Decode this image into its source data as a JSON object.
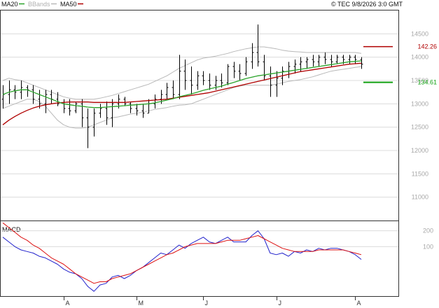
{
  "header": {
    "legend": [
      {
        "label": "MA20",
        "color": "#2aa32a"
      },
      {
        "label": "BBands",
        "color": "#b8b8b8"
      },
      {
        "label": "MA50",
        "color": "#b00000"
      }
    ],
    "timestamp": "© TEC 9/8/2026 3:0 GMT"
  },
  "colors": {
    "price": "#000000",
    "ma20": "#2aa32a",
    "bbands": "#b8b8b8",
    "ma50": "#b00000",
    "macd": "#2222cc",
    "signal": "#dd1111",
    "grid": "#dcdcdc",
    "axis": "#333333"
  },
  "chart_data": [
    {
      "type": "line",
      "y_tick_labels": [
        "14500",
        "14000",
        "13500",
        "13000",
        "12500",
        "12000",
        "11500",
        "11000"
      ],
      "y_ticks": [
        14500,
        14000,
        13500,
        13000,
        12500,
        12000,
        11500,
        11000
      ],
      "ylim": [
        10500,
        15000
      ],
      "grid": true,
      "x_tick_labels": [
        "A",
        "M",
        "J",
        "J",
        "A"
      ],
      "annotations": [
        {
          "label": "142.26",
          "value": 14226,
          "color": "#b00000"
        },
        {
          "label": "134.61",
          "value": 13461,
          "color": "#11a011"
        }
      ],
      "price_bars": [
        [
          13100,
          13400,
          12900,
          13200
        ],
        [
          13200,
          13500,
          13000,
          13300
        ],
        [
          13300,
          13400,
          13100,
          13250
        ],
        [
          13250,
          13500,
          13100,
          13350
        ],
        [
          13350,
          13400,
          13150,
          13300
        ],
        [
          13300,
          13400,
          13000,
          13100
        ],
        [
          13100,
          13300,
          12900,
          13000
        ],
        [
          13000,
          13300,
          12800,
          13200
        ],
        [
          13200,
          13300,
          13000,
          13100
        ],
        [
          13100,
          13250,
          12950,
          13000
        ],
        [
          13000,
          13100,
          12800,
          12900
        ],
        [
          12900,
          13100,
          12750,
          12850
        ],
        [
          12850,
          13050,
          12800,
          13000
        ],
        [
          13000,
          13100,
          12500,
          12700
        ],
        [
          12700,
          12900,
          12050,
          12500
        ],
        [
          12500,
          12900,
          12300,
          12800
        ],
        [
          12800,
          13000,
          12700,
          12900
        ],
        [
          12900,
          13050,
          12550,
          12700
        ],
        [
          12700,
          13100,
          12500,
          13000
        ],
        [
          13000,
          13200,
          12900,
          13100
        ],
        [
          13100,
          13150,
          12950,
          13000
        ],
        [
          13000,
          13050,
          12800,
          12900
        ],
        [
          12900,
          13000,
          12750,
          12850
        ],
        [
          12850,
          13000,
          12700,
          12800
        ],
        [
          12800,
          13100,
          12800,
          13000
        ],
        [
          13000,
          13200,
          12900,
          13100
        ],
        [
          13100,
          13300,
          13000,
          13200
        ],
        [
          13200,
          13450,
          13100,
          13350
        ],
        [
          13350,
          13500,
          13100,
          13200
        ],
        [
          13200,
          14050,
          13100,
          13700
        ],
        [
          13700,
          13950,
          13300,
          13500
        ],
        [
          13500,
          13800,
          13200,
          13400
        ],
        [
          13400,
          13700,
          13300,
          13600
        ],
        [
          13600,
          13700,
          13400,
          13500
        ],
        [
          13500,
          13650,
          13300,
          13400
        ],
        [
          13400,
          13600,
          13300,
          13500
        ],
        [
          13500,
          13650,
          13350,
          13450
        ],
        [
          13450,
          13850,
          13400,
          13800
        ],
        [
          13800,
          13900,
          13550,
          13700
        ],
        [
          13700,
          13850,
          13500,
          13650
        ],
        [
          13650,
          14000,
          13600,
          13900
        ],
        [
          13900,
          14300,
          13750,
          14100
        ],
        [
          14100,
          14700,
          13800,
          13900
        ],
        [
          13900,
          14050,
          13500,
          13600
        ],
        [
          13600,
          13800,
          13150,
          13400
        ],
        [
          13400,
          13700,
          13150,
          13550
        ],
        [
          13550,
          13800,
          13400,
          13700
        ],
        [
          13700,
          13900,
          13550,
          13800
        ],
        [
          13800,
          13950,
          13650,
          13850
        ],
        [
          13850,
          14000,
          13700,
          13900
        ],
        [
          13900,
          14000,
          13750,
          13950
        ],
        [
          13950,
          14050,
          13800,
          13900
        ],
        [
          13900,
          14050,
          13800,
          14000
        ],
        [
          14000,
          14100,
          13850,
          13950
        ],
        [
          13950,
          14050,
          13800,
          13900
        ],
        [
          13900,
          14050,
          13850,
          14000
        ],
        [
          14000,
          14050,
          13850,
          13950
        ],
        [
          13950,
          14050,
          13850,
          14000
        ],
        [
          14000,
          14050,
          13850,
          13950
        ],
        [
          13950,
          14000,
          13750,
          13850
        ]
      ],
      "ma20": [
        13200,
        13250,
        13280,
        13300,
        13300,
        13250,
        13200,
        13150,
        13100,
        13050,
        13000,
        12980,
        12960,
        12950,
        12930,
        12920,
        12920,
        12930,
        12940,
        12950,
        12960,
        12970,
        12980,
        12990,
        13000,
        13020,
        13050,
        13080,
        13110,
        13150,
        13180,
        13210,
        13250,
        13290,
        13320,
        13350,
        13380,
        13420,
        13460,
        13500,
        13540,
        13570,
        13600,
        13620,
        13640,
        13660,
        13680,
        13700,
        13720,
        13740,
        13760,
        13780,
        13800,
        13820,
        13840,
        13860,
        13880,
        13900,
        13910,
        13920
      ],
      "bb_upper": [
        13500,
        13550,
        13520,
        13500,
        13450,
        13400,
        13350,
        13300,
        13250,
        13200,
        13150,
        13120,
        13100,
        13100,
        13100,
        13100,
        13120,
        13150,
        13180,
        13220,
        13260,
        13300,
        13340,
        13380,
        13420,
        13480,
        13540,
        13600,
        13680,
        13760,
        13820,
        13880,
        13940,
        13980,
        14000,
        14020,
        14050,
        14080,
        14120,
        14150,
        14180,
        14200,
        14220,
        14220,
        14200,
        14180,
        14150,
        14130,
        14120,
        14110,
        14100,
        14100,
        14100,
        14100,
        14100,
        14100,
        14100,
        14100,
        14100,
        14080
      ],
      "bb_lower": [
        12900,
        12950,
        13000,
        13050,
        13100,
        13100,
        13050,
        12950,
        12800,
        12650,
        12550,
        12500,
        12480,
        12480,
        12500,
        12550,
        12600,
        12650,
        12700,
        12720,
        12750,
        12780,
        12800,
        12820,
        12850,
        12880,
        12900,
        12920,
        12950,
        12970,
        12980,
        13000,
        13050,
        13100,
        13150,
        13200,
        13250,
        13300,
        13350,
        13380,
        13400,
        13400,
        13400,
        13400,
        13400,
        13420,
        13450,
        13480,
        13500,
        13520,
        13550,
        13580,
        13620,
        13660,
        13700,
        13720,
        13740,
        13760,
        13780,
        13800
      ],
      "ma50": [
        12550,
        12650,
        12730,
        12800,
        12860,
        12910,
        12950,
        12980,
        13000,
        13020,
        13030,
        13040,
        13040,
        13040,
        13040,
        13030,
        13030,
        13030,
        13030,
        13030,
        13030,
        13040,
        13050,
        13060,
        13070,
        13080,
        13090,
        13100,
        13120,
        13140,
        13160,
        13180,
        13200,
        13220,
        13240,
        13270,
        13300,
        13330,
        13360,
        13390,
        13420,
        13450,
        13480,
        13510,
        13540,
        13570,
        13600,
        13630,
        13660,
        13690,
        13710,
        13730,
        13750,
        13770,
        13790,
        13810,
        13830,
        13850,
        13860,
        13870
      ]
    },
    {
      "type": "line",
      "title": "MACD",
      "y_tick_labels": [
        "200",
        "100"
      ],
      "y_ticks": [
        200,
        100
      ],
      "ylim": [
        -210,
        260
      ],
      "grid": true,
      "x_tick_labels": [
        "A",
        "M",
        "J",
        "J",
        "A"
      ],
      "series": [
        {
          "values": [
            160,
            130,
            100,
            80,
            70,
            60,
            40,
            30,
            10,
            -10,
            -40,
            -60,
            -70,
            -100,
            -150,
            -180,
            -140,
            -130,
            -90,
            -80,
            -100,
            -80,
            -50,
            -30,
            0,
            30,
            60,
            50,
            80,
            110,
            90,
            120,
            140,
            160,
            130,
            120,
            140,
            160,
            130,
            130,
            130,
            170,
            200,
            150,
            60,
            50,
            60,
            40,
            70,
            60,
            80,
            70,
            90,
            80,
            90,
            90,
            80,
            70,
            50,
            20
          ],
          "color": "#2222cc"
        },
        {
          "values": [
            250,
            220,
            190,
            160,
            140,
            110,
            90,
            60,
            30,
            10,
            -10,
            -40,
            -70,
            -90,
            -110,
            -130,
            -120,
            -120,
            -100,
            -90,
            -80,
            -70,
            -50,
            -30,
            -10,
            10,
            30,
            50,
            60,
            80,
            100,
            110,
            120,
            120,
            120,
            120,
            130,
            140,
            140,
            140,
            150,
            160,
            170,
            150,
            130,
            110,
            90,
            80,
            70,
            70,
            70,
            70,
            80,
            80,
            80,
            80,
            80,
            70,
            60,
            50
          ],
          "color": "#dd1111"
        }
      ]
    }
  ]
}
